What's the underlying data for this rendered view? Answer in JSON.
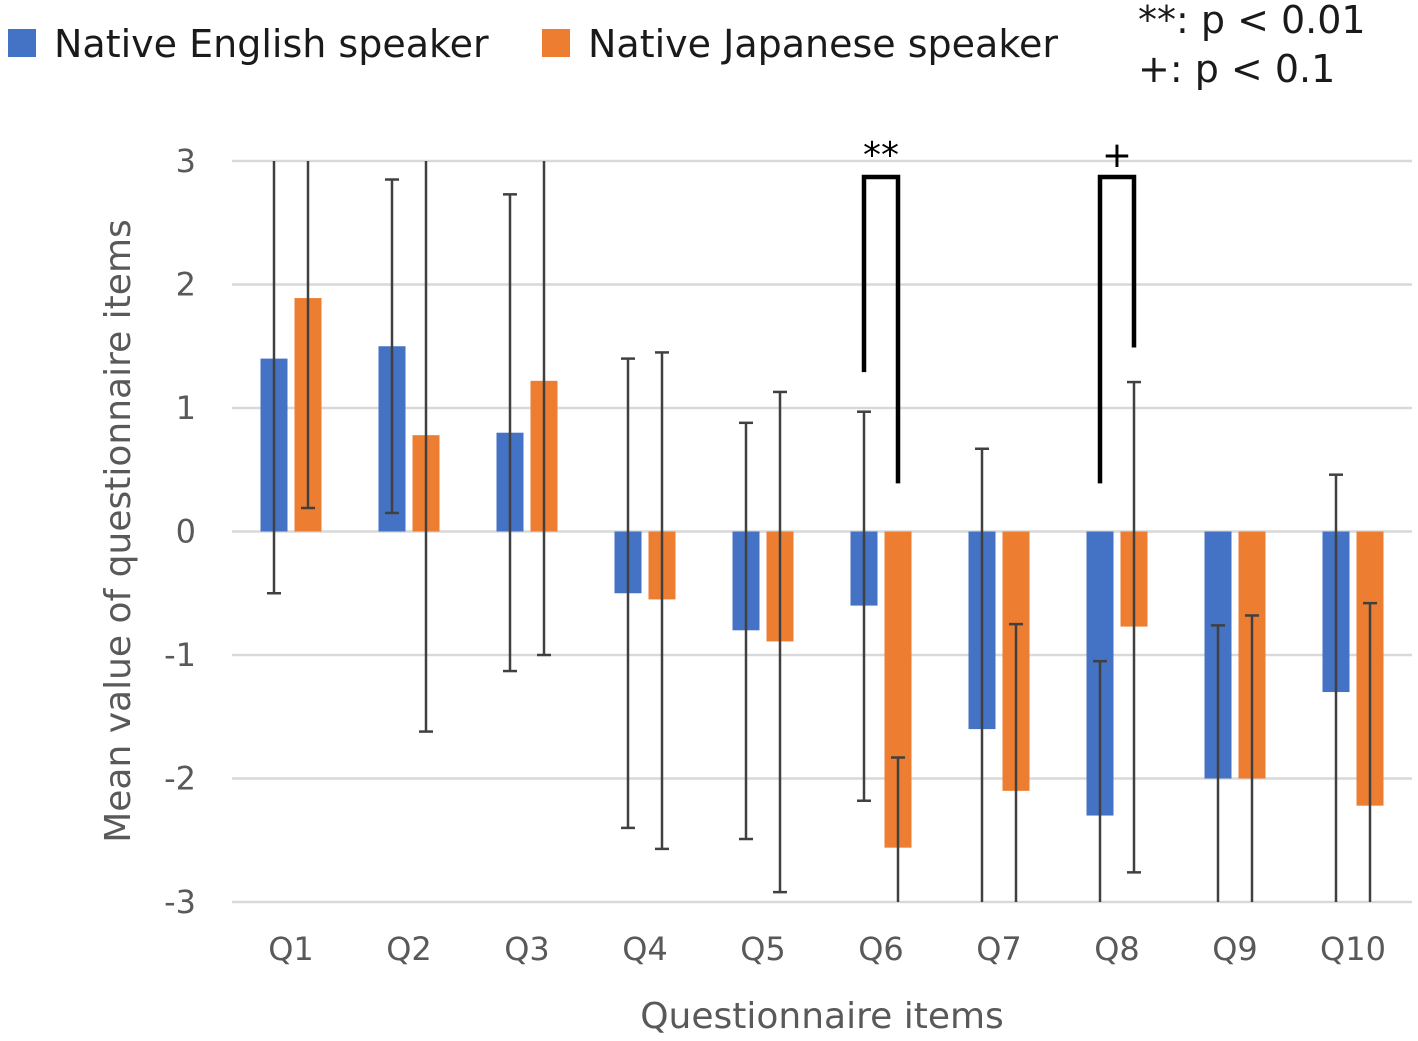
{
  "chart_data": {
    "type": "bar",
    "xlabel": "Questionnaire items",
    "ylabel": "Mean value of questionnaire items",
    "ylim": [
      -3,
      3
    ],
    "yticks": [
      3,
      2,
      1,
      0,
      -1,
      -2,
      -3
    ],
    "grid": true,
    "legend_position": "top-left",
    "categories": [
      "Q1",
      "Q2",
      "Q3",
      "Q4",
      "Q5",
      "Q6",
      "Q7",
      "Q8",
      "Q9",
      "Q10"
    ],
    "series": [
      {
        "name": "Native English speaker",
        "color": "#4472C4",
        "values": [
          1.4,
          1.5,
          0.8,
          -0.5,
          -0.8,
          -0.6,
          -1.6,
          -2.3,
          -2.0,
          -1.3
        ],
        "error_low": [
          -0.5,
          0.15,
          -1.13,
          -2.4,
          -2.49,
          -2.18,
          -3.0,
          -3.0,
          -3.0,
          -3.0
        ],
        "error_high": [
          3.0,
          2.85,
          2.73,
          1.4,
          0.88,
          0.97,
          0.67,
          -1.05,
          -0.76,
          0.46
        ]
      },
      {
        "name": "Native Japanese speaker",
        "color": "#ED7D31",
        "values": [
          1.89,
          0.78,
          1.22,
          -0.55,
          -0.89,
          -2.56,
          -2.1,
          -0.77,
          -2.0,
          -2.22
        ],
        "error_low": [
          0.19,
          -1.62,
          -1.0,
          -2.57,
          -2.92,
          -3.0,
          -3.0,
          -2.76,
          -3.0,
          -3.0
        ],
        "error_high": [
          3.0,
          3.0,
          3.0,
          1.45,
          1.13,
          -1.83,
          -0.75,
          1.21,
          -0.68,
          -0.58
        ]
      }
    ],
    "significance": [
      {
        "category": "Q6",
        "label": "**",
        "left_y": 1.29,
        "right_y": 0.39,
        "top_y": 2.87
      },
      {
        "category": "Q8",
        "label": "+",
        "left_y": 0.39,
        "right_y": 1.49,
        "top_y": 2.87
      }
    ],
    "notes": [
      "**: p < 0.01",
      "+: p < 0.1"
    ]
  }
}
